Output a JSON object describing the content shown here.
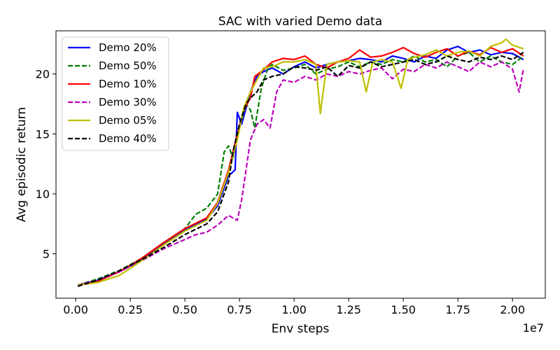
{
  "chart_data": {
    "type": "line",
    "title": "SAC with varied Demo data",
    "xlabel": "Env steps",
    "ylabel": "Avg episodic return",
    "x_offset_label": "1e7",
    "xlim": [
      -0.09,
      2.15
    ],
    "ylim": [
      1.3,
      23.6
    ],
    "xticks": [
      0.0,
      0.25,
      0.5,
      0.75,
      1.0,
      1.25,
      1.5,
      1.75,
      2.0
    ],
    "xtick_labels": [
      "0.00",
      "0.25",
      "0.50",
      "0.75",
      "1.00",
      "1.25",
      "1.50",
      "1.75",
      "2.00"
    ],
    "yticks": [
      5,
      10,
      15,
      20
    ],
    "ytick_labels": [
      "5",
      "10",
      "15",
      "20"
    ],
    "grid": false,
    "legend_position": "top-left",
    "series": [
      {
        "name": "Demo 20%",
        "color": "#0000ff",
        "dash": "solid",
        "points": [
          [
            0.01,
            2.4
          ],
          [
            0.1,
            2.8
          ],
          [
            0.2,
            3.5
          ],
          [
            0.3,
            4.5
          ],
          [
            0.4,
            5.8
          ],
          [
            0.5,
            7.0
          ],
          [
            0.6,
            7.9
          ],
          [
            0.65,
            9.0
          ],
          [
            0.7,
            11.5
          ],
          [
            0.73,
            12.0
          ],
          [
            0.74,
            16.8
          ],
          [
            0.76,
            15.8
          ],
          [
            0.8,
            18.5
          ],
          [
            0.83,
            19.8
          ],
          [
            0.86,
            20.2
          ],
          [
            0.9,
            20.5
          ],
          [
            0.95,
            20.0
          ],
          [
            1.0,
            20.6
          ],
          [
            1.05,
            21.0
          ],
          [
            1.1,
            20.5
          ],
          [
            1.15,
            20.8
          ],
          [
            1.2,
            21.0
          ],
          [
            1.25,
            21.1
          ],
          [
            1.3,
            21.3
          ],
          [
            1.35,
            21.2
          ],
          [
            1.4,
            21.0
          ],
          [
            1.45,
            21.5
          ],
          [
            1.5,
            21.3
          ],
          [
            1.55,
            21.0
          ],
          [
            1.6,
            21.5
          ],
          [
            1.65,
            21.3
          ],
          [
            1.7,
            22.0
          ],
          [
            1.75,
            22.3
          ],
          [
            1.8,
            21.8
          ],
          [
            1.85,
            22.0
          ],
          [
            1.9,
            21.6
          ],
          [
            1.95,
            21.8
          ],
          [
            2.0,
            21.7
          ],
          [
            2.05,
            21.2
          ]
        ]
      },
      {
        "name": "Demo 50%",
        "color": "#008000",
        "dash": "dashed",
        "points": [
          [
            0.01,
            2.4
          ],
          [
            0.1,
            2.9
          ],
          [
            0.2,
            3.6
          ],
          [
            0.3,
            4.6
          ],
          [
            0.4,
            5.9
          ],
          [
            0.5,
            7.1
          ],
          [
            0.55,
            8.3
          ],
          [
            0.6,
            8.8
          ],
          [
            0.65,
            10.0
          ],
          [
            0.68,
            13.5
          ],
          [
            0.7,
            14.0
          ],
          [
            0.72,
            13.0
          ],
          [
            0.75,
            15.5
          ],
          [
            0.78,
            17.5
          ],
          [
            0.8,
            17.0
          ],
          [
            0.82,
            15.5
          ],
          [
            0.85,
            18.8
          ],
          [
            0.88,
            20.5
          ],
          [
            0.9,
            20.8
          ],
          [
            0.95,
            20.3
          ],
          [
            1.0,
            20.5
          ],
          [
            1.05,
            20.8
          ],
          [
            1.1,
            20.0
          ],
          [
            1.15,
            20.4
          ],
          [
            1.2,
            20.6
          ],
          [
            1.25,
            21.0
          ],
          [
            1.3,
            20.6
          ],
          [
            1.35,
            21.0
          ],
          [
            1.4,
            20.8
          ],
          [
            1.45,
            21.2
          ],
          [
            1.5,
            21.0
          ],
          [
            1.55,
            21.5
          ],
          [
            1.6,
            21.0
          ],
          [
            1.65,
            21.2
          ],
          [
            1.7,
            20.6
          ],
          [
            1.75,
            21.5
          ],
          [
            1.8,
            21.8
          ],
          [
            1.85,
            21.0
          ],
          [
            1.9,
            21.5
          ],
          [
            1.95,
            21.0
          ],
          [
            2.0,
            20.8
          ],
          [
            2.05,
            21.5
          ]
        ]
      },
      {
        "name": "Demo 10%",
        "color": "#ff0000",
        "dash": "solid",
        "points": [
          [
            0.01,
            2.4
          ],
          [
            0.1,
            2.7
          ],
          [
            0.2,
            3.5
          ],
          [
            0.3,
            4.6
          ],
          [
            0.4,
            5.9
          ],
          [
            0.5,
            7.1
          ],
          [
            0.6,
            8.0
          ],
          [
            0.65,
            9.3
          ],
          [
            0.7,
            12.0
          ],
          [
            0.74,
            15.0
          ],
          [
            0.77,
            17.0
          ],
          [
            0.8,
            18.0
          ],
          [
            0.82,
            19.8
          ],
          [
            0.85,
            20.2
          ],
          [
            0.9,
            21.0
          ],
          [
            0.95,
            21.3
          ],
          [
            1.0,
            21.2
          ],
          [
            1.05,
            21.5
          ],
          [
            1.1,
            20.8
          ],
          [
            1.15,
            20.5
          ],
          [
            1.2,
            21.0
          ],
          [
            1.25,
            21.3
          ],
          [
            1.3,
            22.0
          ],
          [
            1.35,
            21.4
          ],
          [
            1.4,
            21.5
          ],
          [
            1.45,
            21.8
          ],
          [
            1.5,
            22.2
          ],
          [
            1.55,
            21.7
          ],
          [
            1.6,
            21.4
          ],
          [
            1.65,
            21.8
          ],
          [
            1.7,
            22.1
          ],
          [
            1.75,
            21.5
          ],
          [
            1.8,
            21.9
          ],
          [
            1.85,
            21.6
          ],
          [
            1.9,
            22.2
          ],
          [
            1.95,
            21.8
          ],
          [
            2.0,
            22.1
          ],
          [
            2.05,
            21.5
          ]
        ]
      },
      {
        "name": "Demo 30%",
        "color": "#bf00bf",
        "dash": "dashed",
        "points": [
          [
            0.01,
            2.4
          ],
          [
            0.1,
            2.8
          ],
          [
            0.2,
            3.5
          ],
          [
            0.3,
            4.4
          ],
          [
            0.4,
            5.4
          ],
          [
            0.5,
            6.2
          ],
          [
            0.55,
            6.6
          ],
          [
            0.6,
            6.8
          ],
          [
            0.65,
            7.4
          ],
          [
            0.7,
            8.2
          ],
          [
            0.74,
            7.8
          ],
          [
            0.76,
            9.5
          ],
          [
            0.78,
            12.0
          ],
          [
            0.8,
            14.5
          ],
          [
            0.83,
            15.8
          ],
          [
            0.86,
            16.2
          ],
          [
            0.89,
            15.5
          ],
          [
            0.92,
            18.5
          ],
          [
            0.95,
            19.5
          ],
          [
            1.0,
            19.3
          ],
          [
            1.05,
            19.8
          ],
          [
            1.1,
            19.5
          ],
          [
            1.15,
            20.0
          ],
          [
            1.2,
            19.8
          ],
          [
            1.25,
            20.2
          ],
          [
            1.3,
            20.0
          ],
          [
            1.35,
            20.3
          ],
          [
            1.4,
            20.5
          ],
          [
            1.45,
            19.6
          ],
          [
            1.5,
            20.4
          ],
          [
            1.55,
            20.2
          ],
          [
            1.6,
            20.8
          ],
          [
            1.65,
            20.5
          ],
          [
            1.7,
            21.0
          ],
          [
            1.75,
            20.6
          ],
          [
            1.8,
            20.2
          ],
          [
            1.85,
            21.0
          ],
          [
            1.9,
            20.6
          ],
          [
            1.95,
            21.0
          ],
          [
            2.0,
            20.4
          ],
          [
            2.03,
            18.5
          ],
          [
            2.05,
            20.4
          ]
        ]
      },
      {
        "name": "Demo 05%",
        "color": "#bfbf00",
        "dash": "solid",
        "points": [
          [
            0.01,
            2.4
          ],
          [
            0.1,
            2.6
          ],
          [
            0.2,
            3.2
          ],
          [
            0.3,
            4.4
          ],
          [
            0.4,
            5.7
          ],
          [
            0.5,
            6.9
          ],
          [
            0.6,
            7.8
          ],
          [
            0.65,
            9.2
          ],
          [
            0.7,
            11.8
          ],
          [
            0.74,
            14.5
          ],
          [
            0.77,
            17.2
          ],
          [
            0.8,
            18.5
          ],
          [
            0.83,
            19.5
          ],
          [
            0.86,
            20.5
          ],
          [
            0.9,
            20.6
          ],
          [
            0.95,
            21.0
          ],
          [
            1.0,
            21.0
          ],
          [
            1.05,
            21.2
          ],
          [
            1.1,
            20.8
          ],
          [
            1.12,
            16.7
          ],
          [
            1.15,
            20.8
          ],
          [
            1.2,
            21.0
          ],
          [
            1.25,
            21.1
          ],
          [
            1.3,
            21.0
          ],
          [
            1.33,
            18.5
          ],
          [
            1.36,
            21.0
          ],
          [
            1.4,
            21.2
          ],
          [
            1.45,
            21.0
          ],
          [
            1.49,
            18.8
          ],
          [
            1.52,
            21.2
          ],
          [
            1.55,
            21.4
          ],
          [
            1.6,
            21.6
          ],
          [
            1.65,
            22.0
          ],
          [
            1.7,
            21.5
          ],
          [
            1.75,
            21.8
          ],
          [
            1.8,
            21.9
          ],
          [
            1.85,
            21.5
          ],
          [
            1.9,
            22.3
          ],
          [
            1.95,
            22.6
          ],
          [
            1.97,
            22.9
          ],
          [
            2.0,
            22.4
          ],
          [
            2.05,
            22.1
          ]
        ]
      },
      {
        "name": "Demo 40%",
        "color": "#000000",
        "dash": "dashed",
        "points": [
          [
            0.01,
            2.3
          ],
          [
            0.1,
            2.8
          ],
          [
            0.2,
            3.6
          ],
          [
            0.3,
            4.5
          ],
          [
            0.4,
            5.5
          ],
          [
            0.5,
            6.6
          ],
          [
            0.6,
            7.5
          ],
          [
            0.65,
            8.5
          ],
          [
            0.7,
            11.0
          ],
          [
            0.72,
            13.5
          ],
          [
            0.75,
            15.8
          ],
          [
            0.78,
            17.5
          ],
          [
            0.8,
            18.0
          ],
          [
            0.83,
            18.5
          ],
          [
            0.86,
            19.5
          ],
          [
            0.9,
            19.8
          ],
          [
            0.95,
            20.0
          ],
          [
            1.0,
            20.6
          ],
          [
            1.05,
            20.5
          ],
          [
            1.1,
            20.3
          ],
          [
            1.15,
            20.6
          ],
          [
            1.2,
            19.8
          ],
          [
            1.25,
            20.7
          ],
          [
            1.3,
            20.5
          ],
          [
            1.35,
            21.0
          ],
          [
            1.4,
            20.6
          ],
          [
            1.45,
            20.8
          ],
          [
            1.5,
            21.0
          ],
          [
            1.55,
            21.2
          ],
          [
            1.6,
            20.8
          ],
          [
            1.65,
            21.0
          ],
          [
            1.7,
            21.5
          ],
          [
            1.75,
            21.2
          ],
          [
            1.8,
            21.0
          ],
          [
            1.85,
            21.4
          ],
          [
            1.9,
            21.2
          ],
          [
            1.95,
            21.5
          ],
          [
            2.0,
            21.2
          ],
          [
            2.05,
            21.8
          ]
        ]
      }
    ]
  }
}
